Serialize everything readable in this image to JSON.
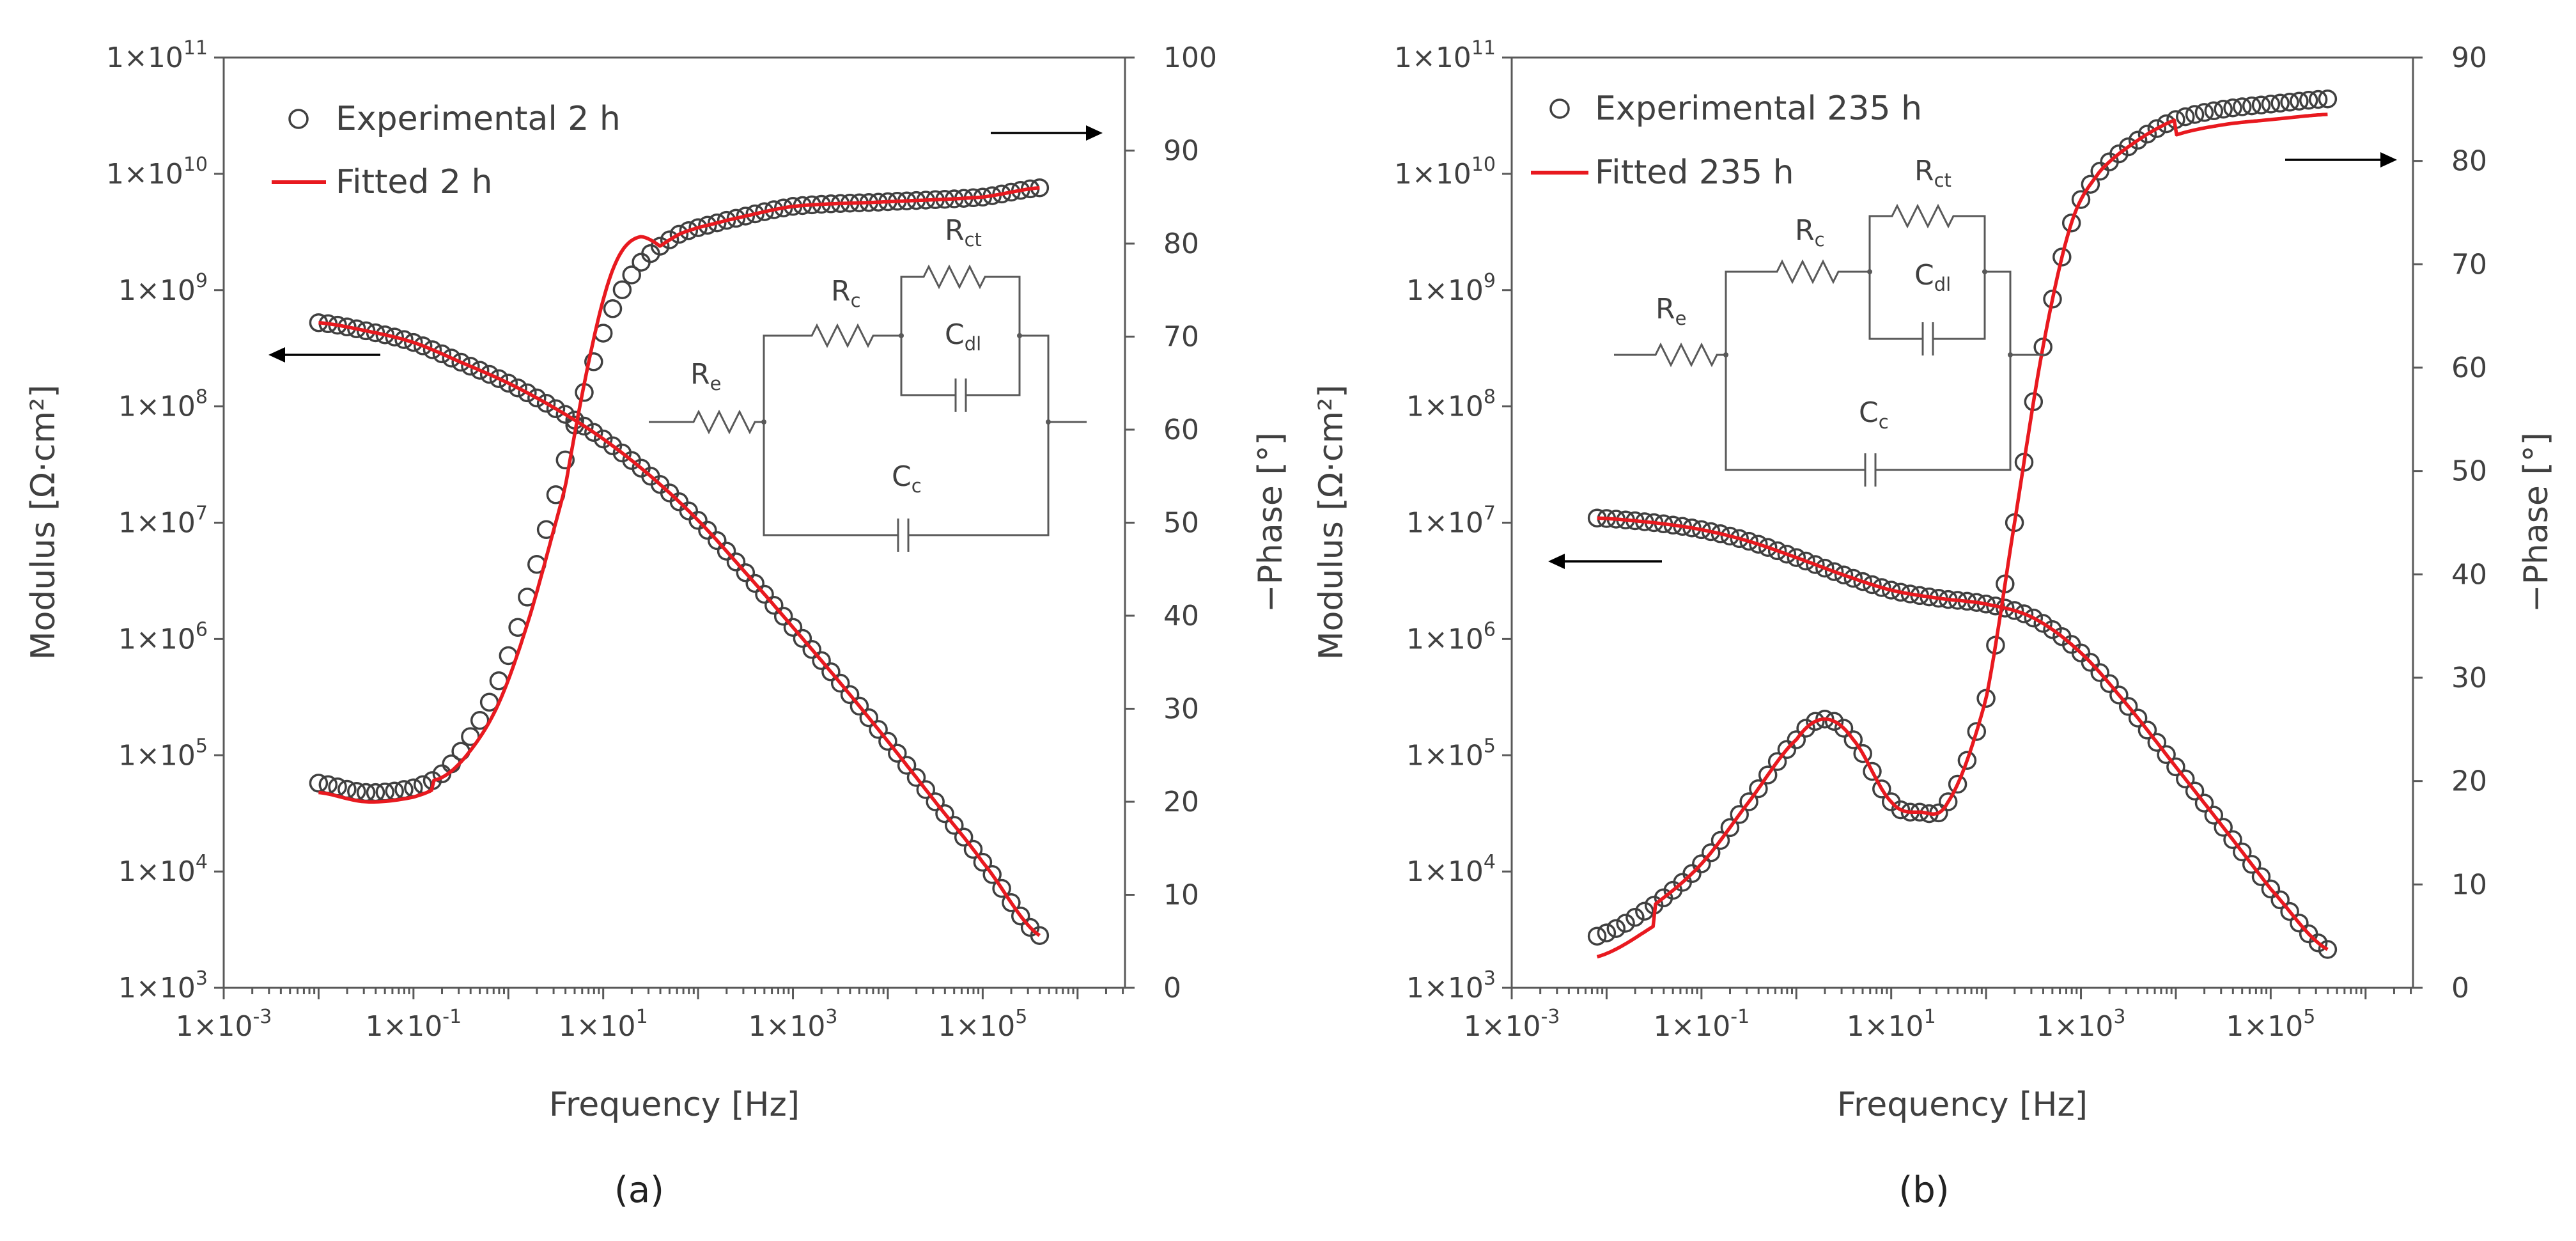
{
  "chart_data": [
    {
      "type": "scatter",
      "panel_label": "(a)",
      "xlabel": "Frequency [Hz]",
      "ylabel_left": "Modulus [Ω·cm²]",
      "ylabel_right": "−Phase [°]",
      "x_scale": "log",
      "xlim_exp": [
        -3,
        6.5
      ],
      "x_tick_exponents": [
        -3,
        -1,
        1,
        3,
        5
      ],
      "x_tick_labels": [
        "1×10-3",
        "1×10-1",
        "1×101",
        "1×103",
        "1×105"
      ],
      "y_left_scale": "log",
      "ylim_left_exp": [
        3,
        11
      ],
      "y_left_tick_labels": [
        "1×103",
        "1×104",
        "1×105",
        "1×106",
        "1×107",
        "1×108",
        "1×109",
        "1×1010",
        "1×1011"
      ],
      "ylim_right": [
        0,
        100
      ],
      "y_right_ticks": [
        0,
        10,
        20,
        30,
        40,
        50,
        60,
        70,
        80,
        90,
        100
      ],
      "legend": [
        {
          "label": "Experimental 2 h",
          "marker": "open-circle"
        },
        {
          "label": "Fitted 2 h",
          "marker": "red-line"
        }
      ],
      "legend_position": "top-left",
      "circuit": {
        "labels": [
          "Re",
          "Rc",
          "Rct",
          "Cdl",
          "Cc"
        ]
      },
      "arrow_left": "points to left axis (modulus)",
      "arrow_right": "points to right axis (phase)",
      "series": [
        {
          "name": "Modulus",
          "axis": "left",
          "log10_f": [
            -2,
            -1.5,
            -1,
            -0.5,
            0,
            0.5,
            1,
            1.5,
            2,
            2.5,
            3,
            3.5,
            4,
            4.5,
            5,
            5.6
          ],
          "log10_Z": [
            8.72,
            8.65,
            8.55,
            8.38,
            8.2,
            7.98,
            7.72,
            7.4,
            7.02,
            6.57,
            6.1,
            5.62,
            5.12,
            4.6,
            4.08,
            3.45
          ]
        },
        {
          "name": "Phase",
          "axis": "right",
          "log10_f": [
            -2,
            -1.5,
            -1,
            -0.7,
            -0.4,
            -0.1,
            0.2,
            0.5,
            0.8,
            1.1,
            1.4,
            1.8,
            2.3,
            3,
            4,
            5,
            5.6
          ],
          "values": [
            22,
            21,
            21.5,
            23,
            27,
            33,
            42,
            53,
            64,
            73,
            78,
            81,
            82.5,
            84,
            84.5,
            85,
            86
          ]
        }
      ]
    },
    {
      "type": "scatter",
      "panel_label": "(b)",
      "xlabel": "Frequency [Hz]",
      "ylabel_left": "Modulus [Ω·cm²]",
      "ylabel_right": "−Phase [°]",
      "x_scale": "log",
      "xlim_exp": [
        -3,
        6.5
      ],
      "x_tick_exponents": [
        -3,
        -1,
        1,
        3,
        5
      ],
      "x_tick_labels": [
        "1×10-3",
        "1×10-1",
        "1×101",
        "1×103",
        "1×105"
      ],
      "y_left_scale": "log",
      "ylim_left_exp": [
        3,
        11
      ],
      "y_left_tick_labels": [
        "1×103",
        "1×104",
        "1×105",
        "1×106",
        "1×107",
        "1×108",
        "1×109",
        "1×1010",
        "1×1011"
      ],
      "ylim_right": [
        0,
        90
      ],
      "y_right_ticks": [
        0,
        10,
        20,
        30,
        40,
        50,
        60,
        70,
        80,
        90
      ],
      "legend": [
        {
          "label": "Experimental 235 h",
          "marker": "open-circle"
        },
        {
          "label": "Fitted 235 h",
          "marker": "red-line"
        }
      ],
      "legend_position": "top-left",
      "circuit": {
        "labels": [
          "Re",
          "Rc",
          "Rct",
          "Cdl",
          "Cc"
        ]
      },
      "arrow_left": "points to left axis (modulus)",
      "arrow_right": "points to right axis (phase)",
      "series": [
        {
          "name": "Modulus",
          "axis": "left",
          "log10_f": [
            -2.1,
            -1.5,
            -1,
            -0.5,
            0,
            0.5,
            1,
            1.5,
            2,
            2.5,
            3,
            3.5,
            4,
            4.5,
            5,
            5.6
          ],
          "log10_Z": [
            7.04,
            7.0,
            6.94,
            6.84,
            6.7,
            6.55,
            6.42,
            6.35,
            6.3,
            6.18,
            5.88,
            5.42,
            4.9,
            4.38,
            3.85,
            3.33
          ]
        },
        {
          "name": "Phase",
          "axis": "right",
          "log10_f": [
            -2.1,
            -1.5,
            -1,
            -0.5,
            0,
            0.3,
            0.6,
            1,
            1.3,
            1.6,
            2,
            2.3,
            2.6,
            2.9,
            3.2,
            3.6,
            4,
            4.5,
            5,
            5.6
          ],
          "values": [
            5,
            8,
            12,
            18,
            24,
            26,
            24,
            18,
            17,
            18,
            28,
            45,
            62,
            74,
            79,
            82,
            84,
            85,
            85.5,
            86
          ]
        }
      ]
    }
  ]
}
